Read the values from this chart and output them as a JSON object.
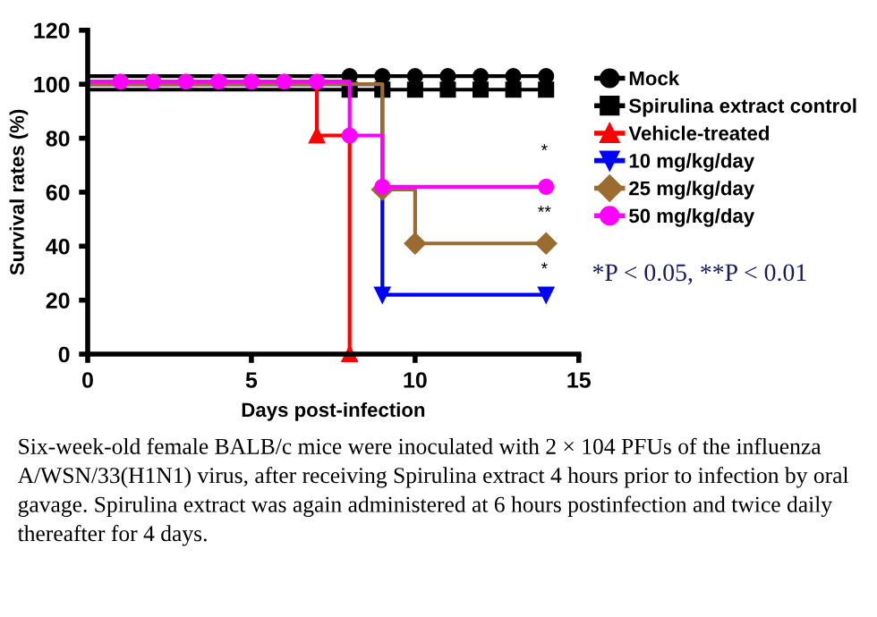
{
  "chart_data": {
    "type": "step",
    "xlabel": "Days post-infection",
    "ylabel": "Survival rates (%)",
    "xlim": [
      0,
      15
    ],
    "xticks": [
      0,
      5,
      10,
      15
    ],
    "ylim": [
      0,
      120
    ],
    "yticks": [
      0,
      20,
      40,
      60,
      80,
      100,
      120
    ],
    "grid": false,
    "legend": "right",
    "series": [
      {
        "name": "Mock",
        "color": "#000000",
        "marker": "circle",
        "x": [
          0,
          8,
          9,
          10,
          11,
          12,
          13,
          14
        ],
        "values": [
          103,
          103,
          103,
          103,
          103,
          103,
          103,
          103
        ]
      },
      {
        "name": "Spirulina extract control",
        "color": "#000000",
        "marker": "square",
        "x": [
          0,
          8,
          9,
          10,
          11,
          12,
          13,
          14
        ],
        "values": [
          98,
          98,
          98,
          98,
          98,
          98,
          98,
          98
        ]
      },
      {
        "name": "Vehicle-treated",
        "color": "#ff0000",
        "marker": "triangle",
        "x": [
          0,
          7,
          8
        ],
        "values": [
          100,
          81,
          0
        ]
      },
      {
        "name": "10 mg/kg/day",
        "color": "#0000ff",
        "marker": "triangle_down",
        "x": [
          0,
          9,
          14
        ],
        "values": [
          100,
          22,
          22
        ]
      },
      {
        "name": "25 mg/kg/day",
        "color": "#9c6b30",
        "marker": "diamond",
        "x": [
          0,
          9,
          10,
          14
        ],
        "values": [
          100,
          61,
          41,
          41
        ]
      },
      {
        "name": "50 mg/kg/day",
        "color": "#ff00ff",
        "marker": "circle",
        "x": [
          0,
          1,
          2,
          3,
          4,
          5,
          6,
          7,
          8,
          9,
          14
        ],
        "values": [
          101,
          101,
          101,
          101,
          101,
          101,
          101,
          101,
          81,
          62,
          62
        ]
      }
    ],
    "annotations": [
      "*",
      "**",
      "*",
      "*P < 0.05, **P < 0.01",
      "Six-week-old female BALB/c mice were inoculated with 2 × 104 PFUs of the influenza A/WSN/33(H1N1) virus, after receiving Spirulina extract 4 hours prior to infection by oral gavage. Spirulina extract was again administered at 6 hours postinfection and twice daily thereafter for 4 days."
    ]
  }
}
